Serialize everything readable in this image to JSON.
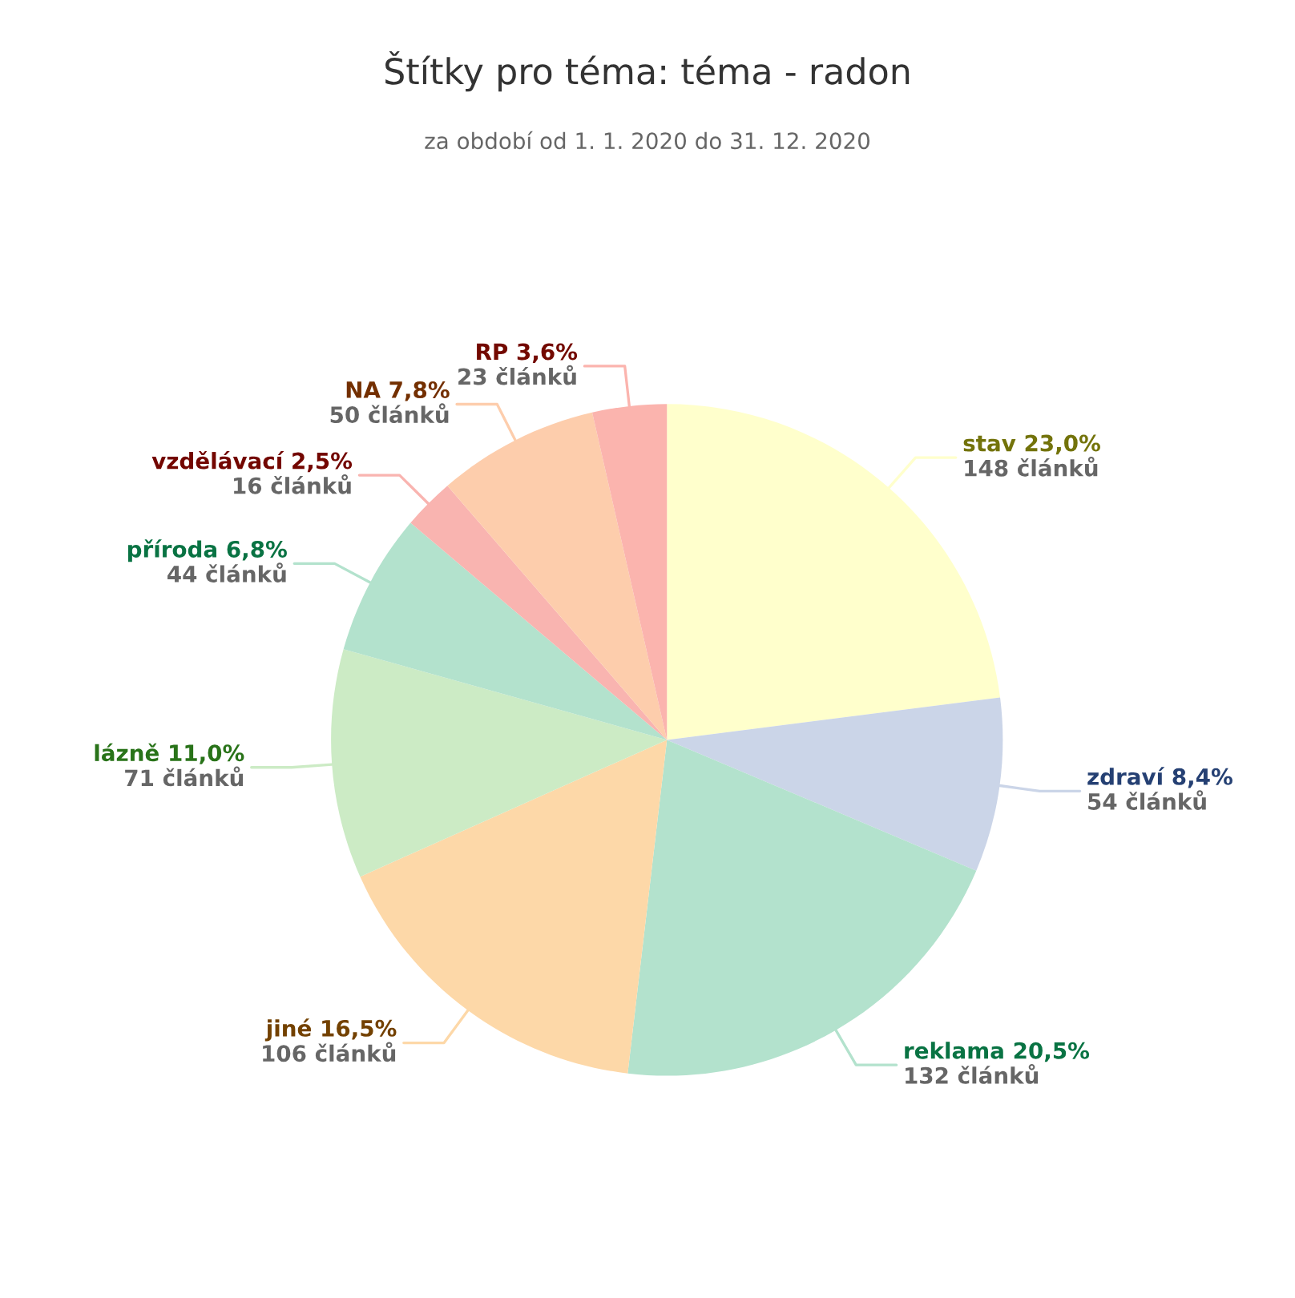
{
  "chart_data": {
    "type": "pie",
    "title": "Štítky pro téma: téma - radon",
    "subtitle": "za období od 1. 1. 2020 do 31. 12. 2020",
    "categories": [
      "stav 23,0%",
      "zdraví 8,4%",
      "reklama 20,5%",
      "jiné 16,5%",
      "lázně 11,0%",
      "příroda 6,8%",
      "vzdělávací 2,5%",
      "NA 7,8%",
      "RP 3,6%"
    ],
    "values": [
      148,
      54,
      132,
      106,
      71,
      44,
      16,
      50,
      23
    ],
    "value_labels": [
      "148 článků",
      "54 článků",
      "132 článků",
      "106 článků",
      "71 článků",
      "44 článků",
      "16 článků",
      "50 článků",
      "23 článků"
    ],
    "colors": [
      "#ffffcc",
      "#cbd5e8",
      "#b3e2cd",
      "#fdd8a8",
      "#ccebc5",
      "#b3e2cd",
      "#f9b4b0",
      "#fdcdac",
      "#fbb4ae"
    ],
    "legend": false
  }
}
